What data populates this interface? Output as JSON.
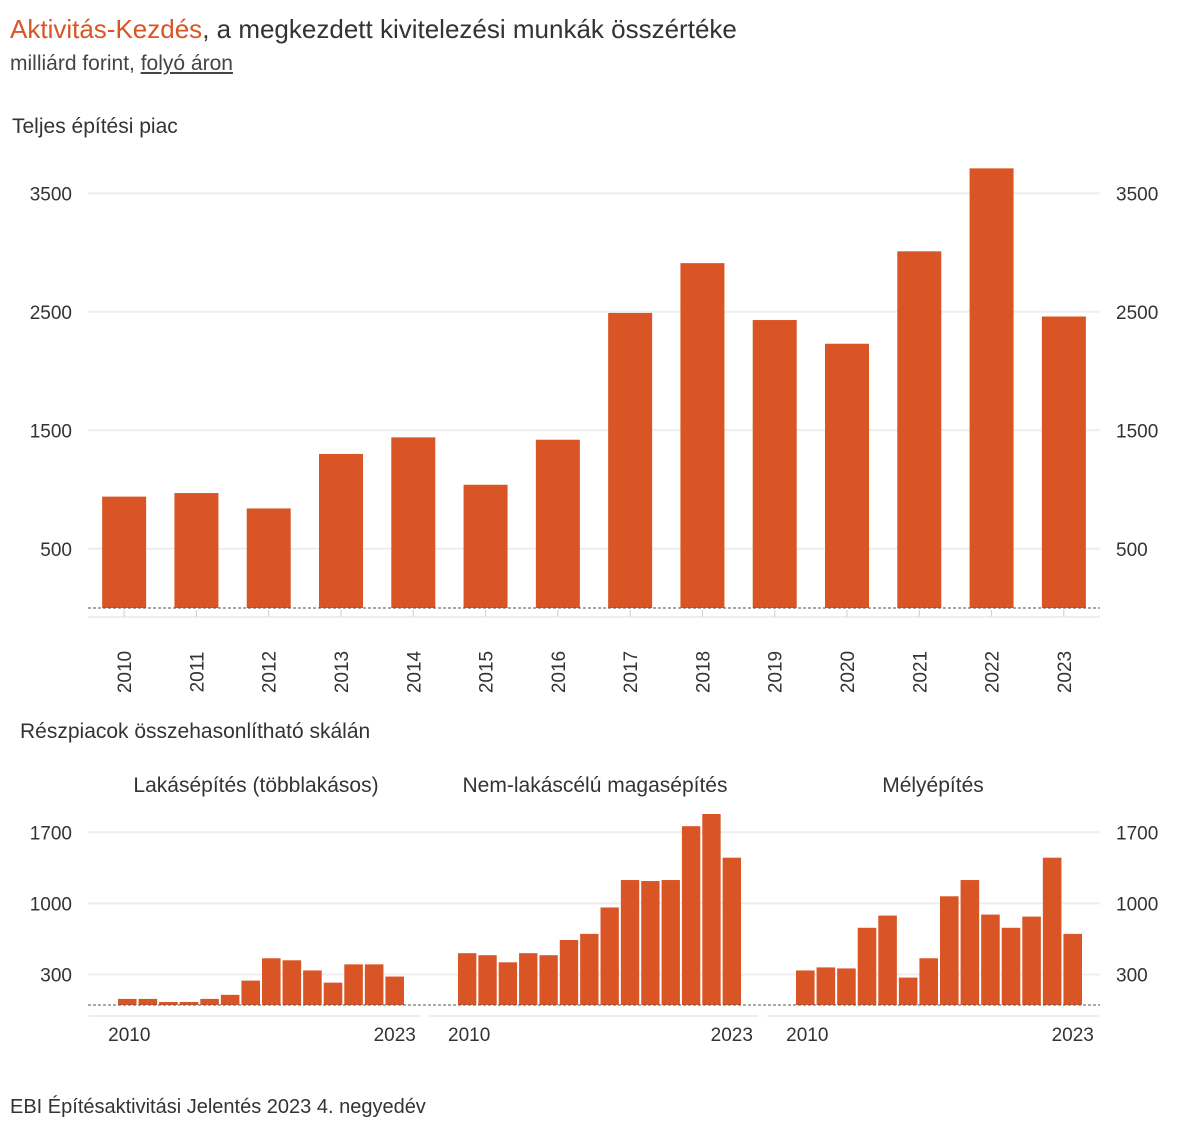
{
  "header": {
    "title_accent": "Aktivitás-Kezdés",
    "title_rest": ", a megkezdett kivitelezési munkák összértéke",
    "subtitle_plain": "milliárd forint, ",
    "subtitle_link": "folyó áron"
  },
  "footer": {
    "source": "EBI Építésaktivitási Jelentés 2023 4. negyedév"
  },
  "colors": {
    "bar": "#d95525",
    "grid": "#eeeeee",
    "accent": "#d95525"
  },
  "chart_data": [
    {
      "type": "bar",
      "title": "Teljes építési piac",
      "categories": [
        "2010",
        "2011",
        "2012",
        "2013",
        "2014",
        "2015",
        "2016",
        "2017",
        "2018",
        "2019",
        "2020",
        "2021",
        "2022",
        "2023"
      ],
      "values": [
        940,
        970,
        840,
        1300,
        1440,
        1040,
        1420,
        2490,
        2910,
        2430,
        2230,
        3010,
        3710,
        2460
      ],
      "yticks": [
        500,
        1500,
        2500,
        3500
      ],
      "ylim": [
        0,
        3800
      ],
      "grid": true,
      "y_axis_both_sides": true
    },
    {
      "type": "bar",
      "title": "Részpiacok összehasonlítható skálán",
      "yticks": [
        300,
        1000,
        1700
      ],
      "ylim": [
        0,
        1900
      ],
      "grid": true,
      "y_axis_both_sides": true,
      "panels": [
        {
          "name": "Lakásépítés (többlakásos)",
          "x_start": "2010",
          "x_end": "2023",
          "values": [
            60,
            60,
            30,
            30,
            60,
            100,
            240,
            460,
            440,
            340,
            220,
            400,
            400,
            280
          ]
        },
        {
          "name": "Nem-lakáscélú magasépítés",
          "x_start": "2010",
          "x_end": "2023",
          "values": [
            510,
            490,
            420,
            510,
            490,
            640,
            700,
            960,
            1230,
            1220,
            1230,
            1760,
            1880,
            1450
          ]
        },
        {
          "name": "Mélyépítés",
          "x_start": "2010",
          "x_end": "2023",
          "values": [
            340,
            370,
            360,
            760,
            880,
            270,
            460,
            1070,
            1230,
            890,
            760,
            870,
            1450,
            700
          ]
        }
      ]
    }
  ]
}
